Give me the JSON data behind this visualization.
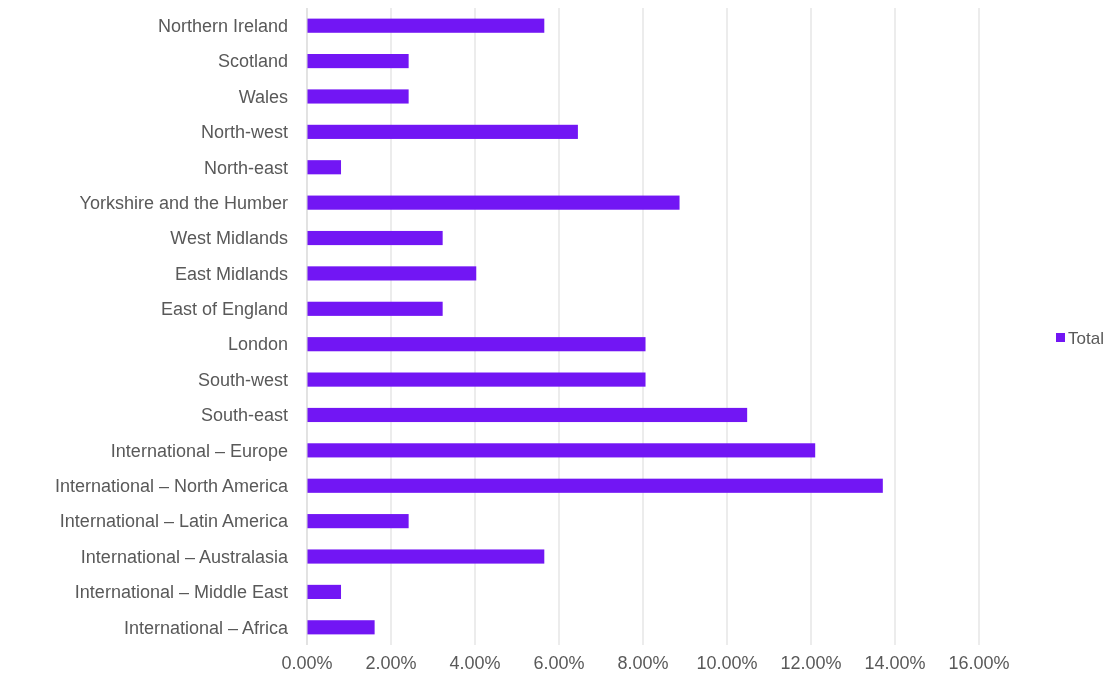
{
  "chart_data": {
    "type": "bar",
    "orientation": "horizontal",
    "categories": [
      "Northern Ireland",
      "Scotland",
      "Wales",
      "North-west",
      "North-east",
      "Yorkshire and the Humber",
      "West Midlands",
      "East Midlands",
      "East of England",
      "London",
      "South-west",
      "South-east",
      "International – Europe",
      "International – North America",
      "International – Latin America",
      "International – Australasia",
      "International – Middle East",
      "International – Africa"
    ],
    "series": [
      {
        "name": "Total",
        "color": "#7216f4",
        "values": [
          5.65,
          2.42,
          2.42,
          6.45,
          0.81,
          8.87,
          3.23,
          4.03,
          3.23,
          8.06,
          8.06,
          10.48,
          12.1,
          13.71,
          2.42,
          5.65,
          0.81,
          1.61
        ]
      }
    ],
    "xlim": [
      0,
      16
    ],
    "xticks": [
      {
        "value": 0,
        "label": "0.00%"
      },
      {
        "value": 2,
        "label": "2.00%"
      },
      {
        "value": 4,
        "label": "4.00%"
      },
      {
        "value": 6,
        "label": "6.00%"
      },
      {
        "value": 8,
        "label": "8.00%"
      },
      {
        "value": 10,
        "label": "10.00%"
      },
      {
        "value": 12,
        "label": "12.00%"
      },
      {
        "value": 14,
        "label": "14.00%"
      },
      {
        "value": 16,
        "label": "16.00%"
      }
    ],
    "grid": "x",
    "legend": "right"
  }
}
